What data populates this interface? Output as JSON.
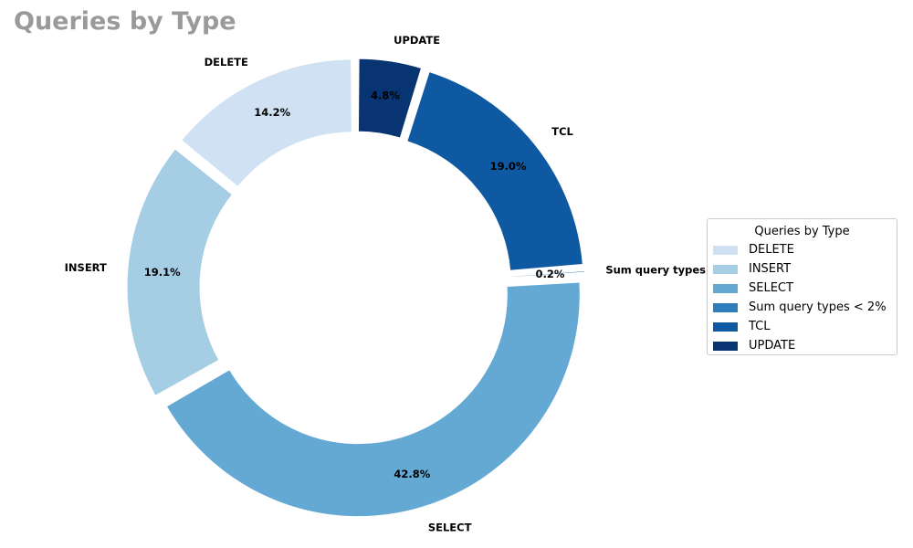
{
  "chart_data": {
    "type": "pie",
    "variant": "donut",
    "title": "Queries by Type",
    "categories": [
      "DELETE",
      "INSERT",
      "SELECT",
      "Sum query types < 2%",
      "TCL",
      "UPDATE"
    ],
    "values": [
      14.2,
      19.1,
      42.8,
      0.2,
      19.0,
      4.8
    ],
    "value_labels": [
      "14.2%",
      "19.1%",
      "42.8%",
      "0.2%",
      "19.0%",
      "4.8%"
    ],
    "slice_labels": [
      "DELETE",
      "INSERT",
      "SELECT",
      "Sum query types < 2%",
      "TCL",
      "UPDATE"
    ],
    "colors": [
      "#cfe1f2",
      "#a5cde3",
      "#64a9d4",
      "#2f7ebc",
      "#0e59a2",
      "#083471"
    ],
    "legend": {
      "title": "Queries by Type",
      "placement": "right",
      "entries": [
        "DELETE",
        "INSERT",
        "SELECT",
        "Sum query types < 2%",
        "TCL",
        "UPDATE"
      ]
    },
    "start_angle_deg": 90,
    "direction": "counterclockwise",
    "legend_order_reversed": false
  }
}
